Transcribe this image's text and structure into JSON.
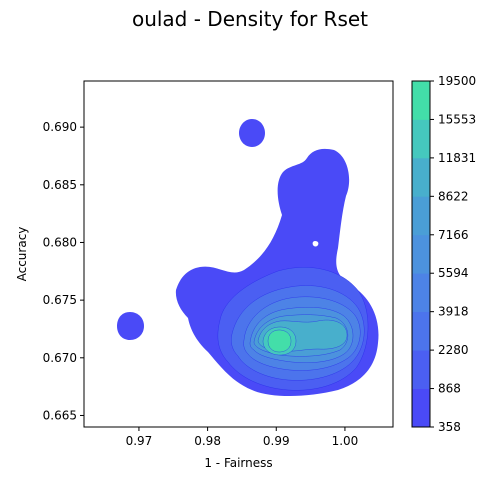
{
  "chart_data": {
    "type": "heatmap",
    "subtype": "filled-density-contour",
    "title": "oulad - Density for Rset",
    "xlabel": "1 - Fairness",
    "ylabel": "Accuracy",
    "xlim": [
      0.962,
      1.007
    ],
    "ylim": [
      0.664,
      0.694
    ],
    "xticks": [
      0.97,
      0.98,
      0.99,
      1.0
    ],
    "xtick_labels": [
      "0.97",
      "0.98",
      "0.99",
      "1.00"
    ],
    "yticks": [
      0.665,
      0.67,
      0.675,
      0.68,
      0.685,
      0.69
    ],
    "ytick_labels": [
      "0.665",
      "0.670",
      "0.675",
      "0.680",
      "0.685",
      "0.690"
    ],
    "grid": false,
    "colorbar": {
      "levels": [
        358,
        868,
        2280,
        3918,
        5594,
        7166,
        8622,
        11831,
        15553,
        19500
      ],
      "labels": [
        "358",
        "868",
        "2280",
        "3918",
        "5594",
        "7166",
        "8622",
        "11831",
        "15553",
        "19500"
      ],
      "colors": [
        "#4a4af7",
        "#4b5ff2",
        "#4c74ec",
        "#4d83e6",
        "#4c92de",
        "#4a9ed6",
        "#48afcc",
        "#45c8be",
        "#43dea9"
      ]
    },
    "density_peaks": [
      {
        "x": 0.9905,
        "y": 0.6714,
        "max_level": 15553
      },
      {
        "x": 0.9978,
        "y": 0.6724,
        "max_level": 5594
      },
      {
        "x": 0.9865,
        "y": 0.6894,
        "max_level": 358
      },
      {
        "x": 0.9692,
        "y": 0.6727,
        "max_level": 358
      }
    ]
  }
}
